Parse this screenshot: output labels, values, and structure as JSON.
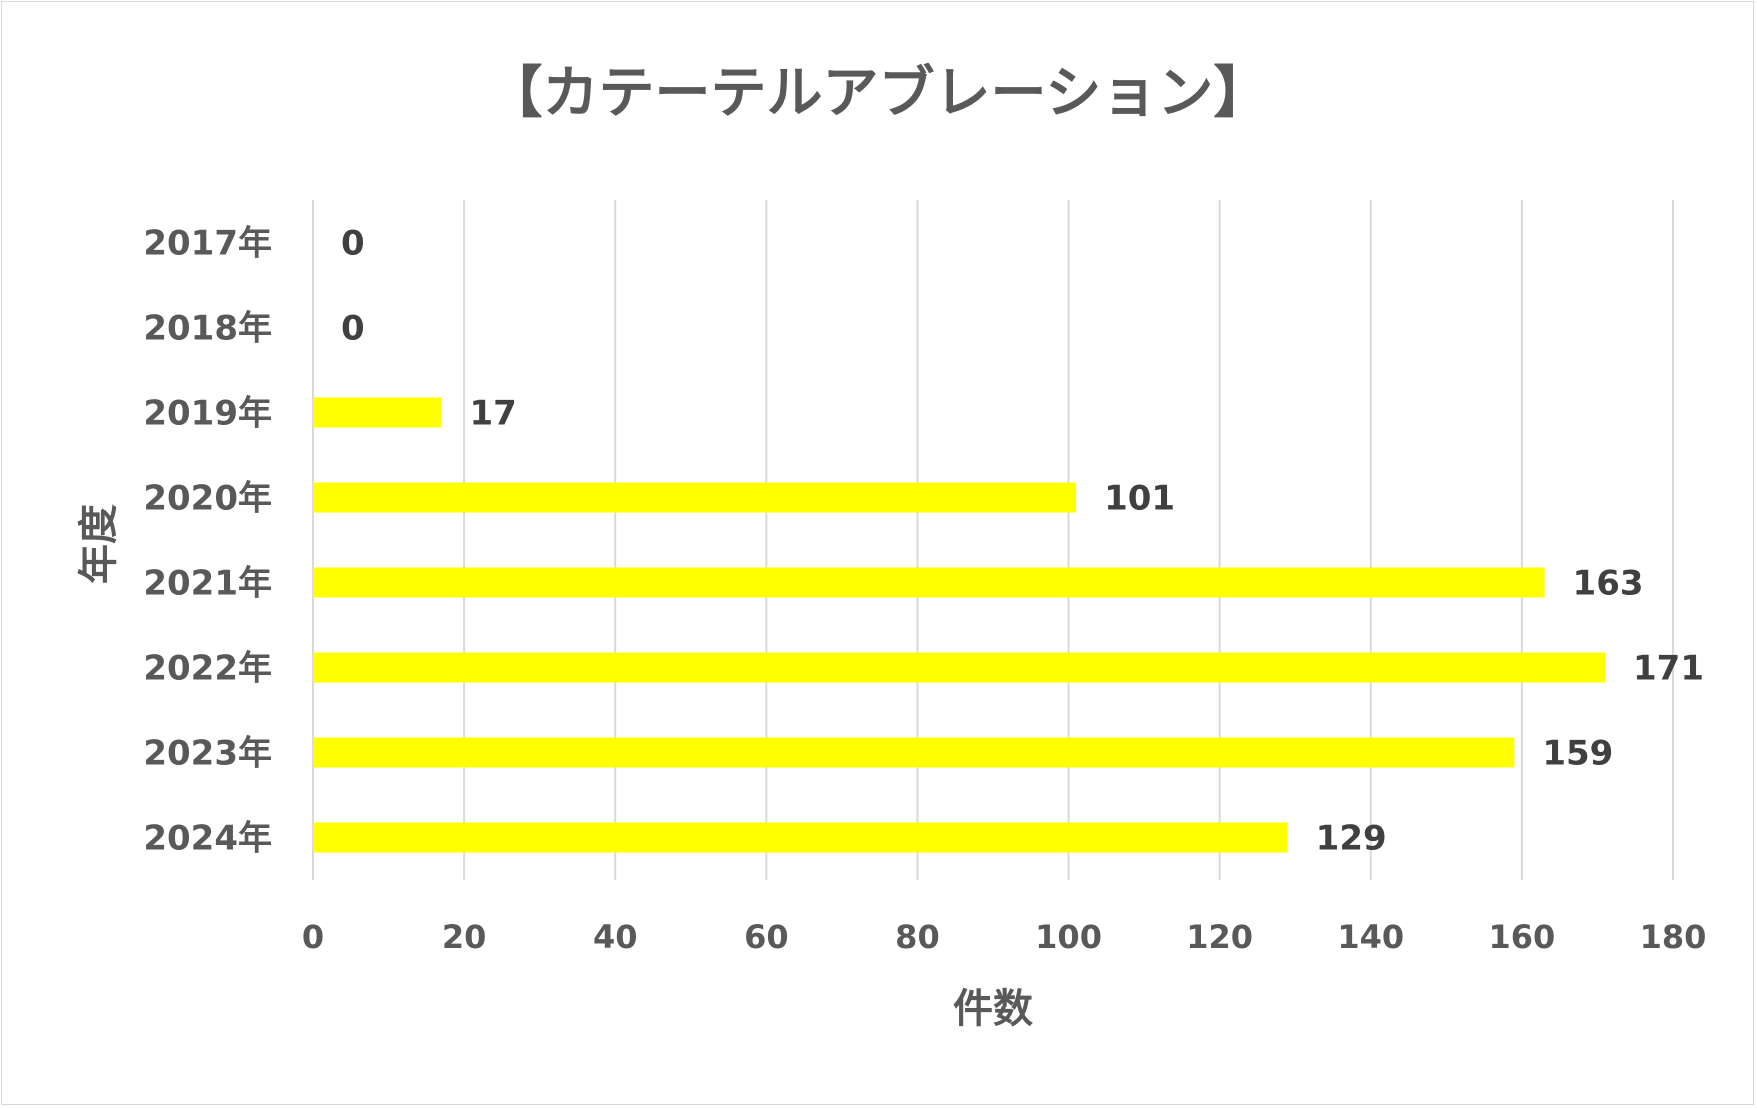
{
  "chart_data": {
    "type": "bar",
    "orientation": "horizontal",
    "title": "【カテーテルアブレーション】",
    "xlabel": "件数",
    "ylabel": "年度",
    "categories": [
      "2017年",
      "2018年",
      "2019年",
      "2020年",
      "2021年",
      "2022年",
      "2023年",
      "2024年"
    ],
    "values": [
      0,
      0,
      17,
      101,
      163,
      171,
      159,
      129
    ],
    "xlim": [
      0,
      180
    ],
    "xticks": [
      0,
      20,
      40,
      60,
      80,
      100,
      120,
      140,
      160,
      180
    ],
    "grid": "vertical",
    "legend": "none",
    "bar_color": "#FFFF00",
    "grid_color": "#d9d9d9",
    "text_color": "#595959",
    "data_labels": true
  }
}
